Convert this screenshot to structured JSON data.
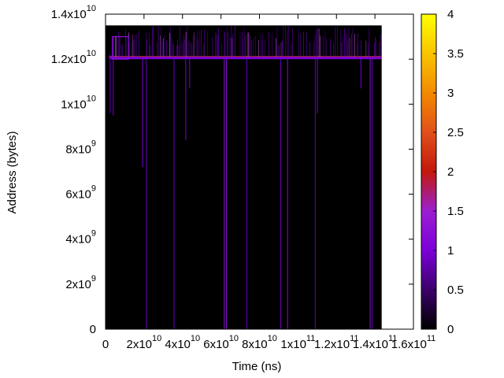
{
  "chart_data": {
    "type": "heatmap",
    "xlabel": "Time (ns)",
    "ylabel": "Address (bytes)",
    "xlim": [
      0,
      160000000000.0
    ],
    "ylim": [
      0,
      14000000000.0
    ],
    "data_extent": {
      "x_max": 143500000000.0,
      "y_max": 13500000000.0
    },
    "x_ticks": [
      {
        "value": 0,
        "mantissa": "0",
        "exponent": ""
      },
      {
        "value": 20000000000.0,
        "mantissa": "2x10",
        "exponent": "10"
      },
      {
        "value": 40000000000.0,
        "mantissa": "4x10",
        "exponent": "10"
      },
      {
        "value": 60000000000.0,
        "mantissa": "6x10",
        "exponent": "10"
      },
      {
        "value": 80000000000.0,
        "mantissa": "8x10",
        "exponent": "10"
      },
      {
        "value": 100000000000.0,
        "mantissa": "1x10",
        "exponent": "11"
      },
      {
        "value": 120000000000.0,
        "mantissa": "1.2x10",
        "exponent": "11"
      },
      {
        "value": 140000000000.0,
        "mantissa": "1.4x10",
        "exponent": "11"
      },
      {
        "value": 160000000000.0,
        "mantissa": "1.6x10",
        "exponent": "11"
      }
    ],
    "y_ticks": [
      {
        "value": 0,
        "mantissa": "0",
        "exponent": ""
      },
      {
        "value": 2000000000.0,
        "mantissa": "2x10",
        "exponent": "9"
      },
      {
        "value": 4000000000.0,
        "mantissa": "4x10",
        "exponent": "9"
      },
      {
        "value": 6000000000.0,
        "mantissa": "6x10",
        "exponent": "9"
      },
      {
        "value": 8000000000.0,
        "mantissa": "8x10",
        "exponent": "9"
      },
      {
        "value": 10000000000.0,
        "mantissa": "1x10",
        "exponent": "10"
      },
      {
        "value": 12000000000.0,
        "mantissa": "1.2x10",
        "exponent": "10"
      },
      {
        "value": 14000000000.0,
        "mantissa": "1.4x10",
        "exponent": "10"
      }
    ],
    "colorbar": {
      "range": [
        0,
        4
      ],
      "ticks": [
        "0",
        "0.5",
        "1",
        "1.5",
        "2",
        "2.5",
        "3",
        "3.5",
        "4"
      ],
      "colors": [
        "#000000",
        "#3b006a",
        "#7c00d8",
        "#9b1fd0",
        "#c2180c",
        "#e0501a",
        "#f28a00",
        "#f9c400",
        "#ffff00"
      ]
    },
    "background_color": "#000000",
    "band": {
      "y_low": 12000000000.0,
      "y_high": 13500000000.0,
      "x_start": 1800000000.0,
      "x_end": 143500000000.0,
      "color": "#7c00d8",
      "hot_color": "#e04020"
    },
    "vertical_streaks": [
      {
        "x": 19300000000.0,
        "y_low": 7200000000.0,
        "color": "#7c00d8"
      },
      {
        "x": 21200000000.0,
        "y_low": 0,
        "color": "#6a00c0"
      },
      {
        "x": 35600000000.0,
        "y_low": 0,
        "color": "#6a00c0"
      },
      {
        "x": 41700000000.0,
        "y_low": 8400000000.0,
        "color": "#7c00d8"
      },
      {
        "x": 43700000000.0,
        "y_low": 10700000000.0,
        "color": "#7c00d8"
      },
      {
        "x": 61700000000.0,
        "y_low": 0,
        "color": "#8a10d8"
      },
      {
        "x": 62800000000.0,
        "y_low": 0,
        "color": "#8a10d8"
      },
      {
        "x": 73400000000.0,
        "y_low": 0,
        "color": "#6a00c0"
      },
      {
        "x": 91000000000.0,
        "y_low": 0,
        "color": "#6a00c0"
      },
      {
        "x": 94600000000.0,
        "y_low": 0,
        "color": "#8a10d8"
      },
      {
        "x": 109000000000.0,
        "y_low": 0,
        "color": "#6a00c0"
      },
      {
        "x": 110100000000.0,
        "y_low": 9600000000.0,
        "color": "#7c00d8"
      },
      {
        "x": 137500000000.0,
        "y_low": 0,
        "color": "#8a10d8"
      },
      {
        "x": 138500000000.0,
        "y_low": 0,
        "color": "#6a00c0"
      },
      {
        "x": 132700000000.0,
        "y_low": 10700000000.0,
        "color": "#7c00d8"
      }
    ]
  }
}
